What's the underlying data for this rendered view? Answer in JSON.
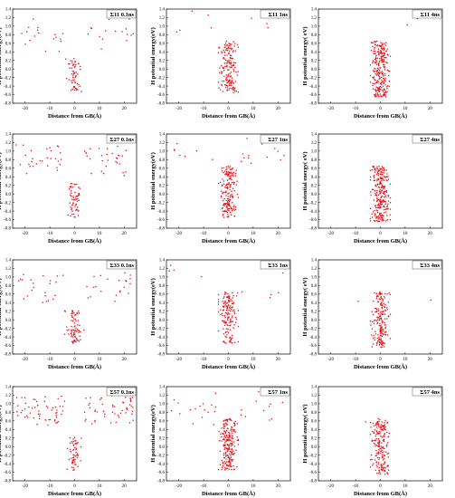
{
  "figure": {
    "x_label": "Distance from GB(Å)",
    "y_label_a": "H potential energy(eV)",
    "y_label_b": "H potential energy( eV)",
    "colors": {
      "points": "#e8121a",
      "axis": "#000000",
      "title_box": "#333333"
    }
  },
  "chart_data": [
    {
      "type": "scatter",
      "panel": "Σ11 0.1ns",
      "title": "Σ11 0.1ns",
      "xlabel": "Distance from GB(Å)",
      "ylabel": "H potential energy(eV)",
      "xlim": [
        -25,
        25
      ],
      "ylim": [
        -0.8,
        1.4
      ],
      "xticks": [
        "-20",
        "-10",
        "0",
        "10",
        "20"
      ],
      "yticks": [
        "-0.8",
        "-0.6",
        "-0.4",
        "-0.2",
        "0.0",
        "0.2",
        "0.4",
        "0.6",
        "0.8",
        "1.0",
        "1.2",
        "1.4"
      ],
      "distribution": "wide",
      "wings": 34,
      "core": 60,
      "band": [
        0.4,
        1.2
      ]
    },
    {
      "type": "scatter",
      "panel": "Σ11 1ns",
      "title": "Σ11 1ns",
      "xlabel": "Distance from GB(Å)",
      "ylabel": "H potential energy(eV)",
      "xlim": [
        -25,
        25
      ],
      "ylim": [
        -0.8,
        1.4
      ],
      "xticks": [
        "-20",
        "-10",
        "0",
        "10",
        "20"
      ],
      "yticks": [
        "-0.8",
        "-0.6",
        "-0.4",
        "-0.2",
        "0.0",
        "0.2",
        "0.4",
        "0.6",
        "0.8",
        "1.0",
        "1.2",
        "1.4"
      ],
      "distribution": "sparse",
      "wings": 10,
      "core": 170,
      "band": [
        0.6,
        1.4
      ]
    },
    {
      "type": "scatter",
      "panel": "Σ11 4ns",
      "title": "Σ11 4ns",
      "xlabel": "Distance from GB(Å)",
      "ylabel": "H potential energy( eV)",
      "xlim": [
        -25,
        25
      ],
      "ylim": [
        -0.8,
        1.4
      ],
      "xticks": [
        "-20",
        "-10",
        "0",
        "10",
        "20"
      ],
      "yticks": [
        "-0.8",
        "-0.6",
        "-0.4",
        "-0.2",
        "0.0",
        "0.2",
        "0.4",
        "0.6",
        "0.8",
        "1.0",
        "1.2",
        "1.4"
      ],
      "distribution": "core",
      "wings": 2,
      "core": 260,
      "band": [
        0.8,
        1.2
      ]
    },
    {
      "type": "scatter",
      "panel": "Σ27 0.1ns",
      "title": "Σ27 0.1ns",
      "xlabel": "Distance from GB(Å)",
      "ylabel": "H potential energy(eV)",
      "xlim": [
        -25,
        25
      ],
      "ylim": [
        -0.8,
        1.4
      ],
      "xticks": [
        "-20",
        "-10",
        "0",
        "10",
        "20"
      ],
      "yticks": [
        "-0.8",
        "-0.6",
        "-0.4",
        "-0.2",
        "0.0",
        "0.2",
        "0.4",
        "0.6",
        "0.8",
        "1.0",
        "1.2",
        "1.4"
      ],
      "distribution": "wide",
      "wings": 60,
      "core": 60,
      "band": [
        0.4,
        1.2
      ]
    },
    {
      "type": "scatter",
      "panel": "Σ27 1ns",
      "title": "Σ27 1ns",
      "xlabel": "Distance from GB(Å)",
      "ylabel": "H potential energy(eV)",
      "xlim": [
        -25,
        25
      ],
      "ylim": [
        -0.8,
        1.4
      ],
      "xticks": [
        "-20",
        "-10",
        "0",
        "10",
        "20"
      ],
      "yticks": [
        "-0.8",
        "-0.6",
        "-0.4",
        "-0.2",
        "0.0",
        "0.2",
        "0.4",
        "0.6",
        "0.8",
        "1.0",
        "1.2",
        "1.4"
      ],
      "distribution": "sparse",
      "wings": 20,
      "core": 180,
      "band": [
        0.6,
        1.3
      ]
    },
    {
      "type": "scatter",
      "panel": "Σ27 4ns",
      "title": "Σ27 4ns",
      "xlabel": "Distance from GB(Å)",
      "ylabel": "H potential energy( eV)",
      "xlim": [
        -25,
        25
      ],
      "ylim": [
        -0.8,
        1.4
      ],
      "xticks": [
        "-20",
        "-10",
        "0",
        "10",
        "20"
      ],
      "yticks": [
        "-0.8",
        "-0.6",
        "-0.4",
        "-0.2",
        "0.0",
        "0.2",
        "0.4",
        "0.6",
        "0.8",
        "1.0",
        "1.2",
        "1.4"
      ],
      "distribution": "core",
      "wings": 0,
      "core": 270,
      "band": [
        0.6,
        1.2
      ]
    },
    {
      "type": "scatter",
      "panel": "Σ33 0.1ns",
      "title": "Σ33 0.1ns",
      "xlabel": "Distance from GB(Å)",
      "ylabel": "H potential energy(eV)",
      "xlim": [
        -25,
        25
      ],
      "ylim": [
        -0.8,
        1.4
      ],
      "xticks": [
        "-20",
        "-10",
        "0",
        "10",
        "20"
      ],
      "yticks": [
        "-0.8",
        "-0.6",
        "-0.4",
        "-0.2",
        "0.0",
        "0.2",
        "0.4",
        "0.6",
        "0.8",
        "1.0",
        "1.2",
        "1.4"
      ],
      "distribution": "wide",
      "wings": 45,
      "core": 80,
      "band": [
        0.4,
        1.1
      ]
    },
    {
      "type": "scatter",
      "panel": "Σ33 1ns",
      "title": "Σ33 1ns",
      "xlabel": "Distance from GB(Å)",
      "ylabel": "H potential energy(eV)",
      "xlim": [
        -25,
        25
      ],
      "ylim": [
        -0.8,
        1.4
      ],
      "xticks": [
        "-20",
        "-10",
        "0",
        "10",
        "20"
      ],
      "yticks": [
        "-0.8",
        "-0.6",
        "-0.4",
        "-0.2",
        "0.0",
        "0.2",
        "0.4",
        "0.6",
        "0.8",
        "1.0",
        "1.2",
        "1.4"
      ],
      "distribution": "sparse",
      "wings": 10,
      "core": 150,
      "band": [
        0.5,
        1.3
      ]
    },
    {
      "type": "scatter",
      "panel": "Σ33 4ns",
      "title": "Σ33 4ns",
      "xlabel": "Distance from GB(Å)",
      "ylabel": "H potential energy( eV)",
      "xlim": [
        -25,
        25
      ],
      "ylim": [
        -0.8,
        1.4
      ],
      "xticks": [
        "-20",
        "-10",
        "0",
        "10",
        "20"
      ],
      "yticks": [
        "-0.8",
        "-0.6",
        "-0.4",
        "-0.2",
        "0.0",
        "0.2",
        "0.4",
        "0.6",
        "0.8",
        "1.0",
        "1.2",
        "1.4"
      ],
      "distribution": "core",
      "wings": 2,
      "core": 190,
      "band": [
        0.4,
        0.6
      ]
    },
    {
      "type": "scatter",
      "panel": "Σ57 0.1ns",
      "title": "Σ57 0.1ns",
      "xlabel": "Distance from GB(Å)",
      "ylabel": "H potential energy(eV)",
      "xlim": [
        -25,
        25
      ],
      "ylim": [
        -0.8,
        1.4
      ],
      "xticks": [
        "-20",
        "-10",
        "0",
        "10",
        "20"
      ],
      "yticks": [
        "-0.8",
        "-0.6",
        "-0.4",
        "-0.2",
        "0.0",
        "0.2",
        "0.4",
        "0.6",
        "0.8",
        "1.0",
        "1.2",
        "1.4"
      ],
      "distribution": "wide",
      "wings": 110,
      "core": 60,
      "band": [
        0.5,
        1.2
      ]
    },
    {
      "type": "scatter",
      "panel": "Σ57 1ns",
      "title": "Σ57 1ns",
      "xlabel": "Distance from GB(Å)",
      "ylabel": "H potential energy(eV)",
      "xlim": [
        -25,
        25
      ],
      "ylim": [
        -0.8,
        1.4
      ],
      "xticks": [
        "-20",
        "-10",
        "0",
        "10",
        "20"
      ],
      "yticks": [
        "-0.8",
        "-0.6",
        "-0.4",
        "-0.2",
        "0.0",
        "0.2",
        "0.4",
        "0.6",
        "0.8",
        "1.0",
        "1.2",
        "1.4"
      ],
      "distribution": "sparse",
      "wings": 30,
      "core": 220,
      "band": [
        0.5,
        1.4
      ]
    },
    {
      "type": "scatter",
      "panel": "Σ57 4ns",
      "title": "Σ57 4ns",
      "xlabel": "Distance from GB(Å)",
      "ylabel": "H potential energy( eV)",
      "xlim": [
        -25,
        25
      ],
      "ylim": [
        -0.8,
        1.4
      ],
      "xticks": [
        "-20",
        "-10",
        "0",
        "10",
        "20"
      ],
      "yticks": [
        "-0.8",
        "-0.6",
        "-0.4",
        "-0.2",
        "0.0",
        "0.2",
        "0.4",
        "0.6",
        "0.8",
        "1.0",
        "1.2",
        "1.4"
      ],
      "distribution": "core",
      "wings": 1,
      "core": 200,
      "band": [
        0.5,
        0.6
      ]
    }
  ]
}
